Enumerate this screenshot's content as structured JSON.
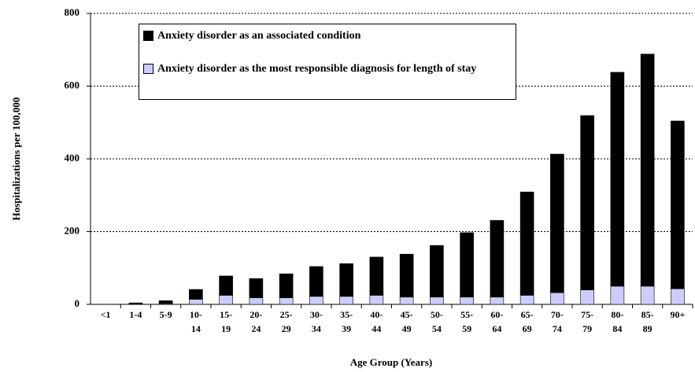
{
  "chart_data": {
    "type": "stacked_bar",
    "xlabel": "Age Group (Years)",
    "ylabel": "Hospitalizations per 100,000",
    "categories": [
      "<1",
      "1-4",
      "5-9",
      "10-\n14",
      "15-\n19",
      "20-\n24",
      "25-\n29",
      "30-\n34",
      "35-\n39",
      "40-\n44",
      "45-\n49",
      "50-\n54",
      "55-\n59",
      "60-\n64",
      "65-\n69",
      "70-\n74",
      "75-\n79",
      "80-\n84",
      "85-\n89",
      "90+"
    ],
    "series": [
      {
        "name": "Anxiety disorder as the most responsible diagnosis for length of stay",
        "color": "#ccccff",
        "values": [
          0,
          1,
          2,
          14,
          25,
          18,
          18,
          22,
          22,
          25,
          20,
          20,
          20,
          20,
          25,
          32,
          40,
          50,
          50,
          43
        ]
      },
      {
        "name": "Anxiety disorder as an associated condition",
        "color": "#000000",
        "values": [
          0,
          3,
          8,
          27,
          53,
          53,
          66,
          82,
          90,
          105,
          118,
          142,
          177,
          211,
          284,
          381,
          479,
          588,
          638,
          461
        ]
      }
    ],
    "ylim": [
      0,
      800
    ],
    "yticks": [
      0,
      200,
      400,
      600,
      800
    ],
    "grid": true
  }
}
